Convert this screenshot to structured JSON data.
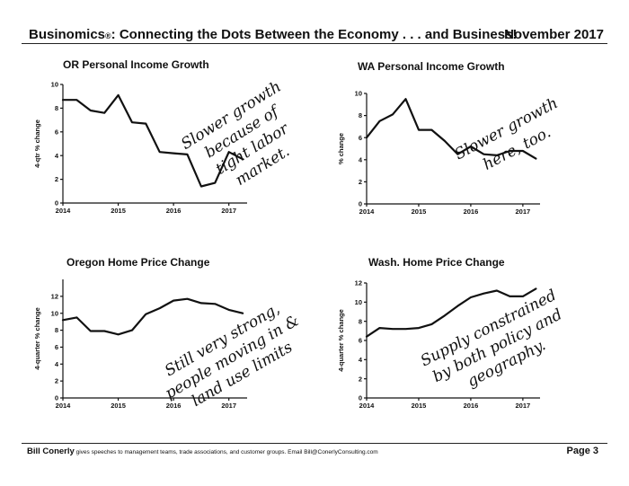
{
  "header": {
    "title": "Businomics",
    "reg_mark": "®",
    "title_rest": ": Connecting the Dots Between the Economy . . . and Business!",
    "date": "November 2017"
  },
  "footer": {
    "name": "Bill Conerly",
    "text": " gives speeches to management teams, trade associations, and customer groups.  Email Bill@ConerlyConsulting.com",
    "page": "Page 3"
  },
  "chart_data": [
    {
      "type": "line",
      "title": "OR Personal Income Growth",
      "ylabel": "4-qtr % change",
      "ylim": [
        0,
        10
      ],
      "yticks": [
        0,
        2,
        4,
        6,
        8,
        10
      ],
      "xlim": [
        2014,
        2017.33
      ],
      "xticks": [
        2014,
        2015,
        2016,
        2017
      ],
      "xtick_labels": [
        "2014",
        "2015",
        "2016",
        "2017"
      ],
      "series": [
        {
          "x": [
            2014,
            2014.25,
            2014.5,
            2014.75,
            2015,
            2015.25,
            2015.5,
            2015.75,
            2016,
            2016.25,
            2016.5,
            2016.75,
            2017,
            2017.25
          ],
          "values": [
            8.7,
            8.7,
            7.8,
            7.6,
            9.1,
            6.8,
            6.7,
            4.3,
            4.2,
            4.1,
            1.4,
            1.7,
            4.3,
            3.7
          ]
        }
      ],
      "annotation": [
        "Slower growth",
        "because of",
        "tight labor",
        "market."
      ]
    },
    {
      "type": "line",
      "title": "WA Personal Income Growth",
      "ylabel": "% change",
      "ylim": [
        0,
        10
      ],
      "yticks": [
        0,
        2,
        4,
        6,
        8,
        10
      ],
      "xlim": [
        2014,
        2017.33
      ],
      "xticks": [
        2014,
        2015,
        2016,
        2017
      ],
      "xtick_labels": [
        "2014",
        "2015",
        "2016",
        "2017"
      ],
      "series": [
        {
          "x": [
            2014,
            2014.25,
            2014.5,
            2014.75,
            2015,
            2015.25,
            2015.5,
            2015.75,
            2016,
            2016.25,
            2016.5,
            2016.75,
            2017,
            2017.25
          ],
          "values": [
            6.0,
            7.5,
            8.1,
            9.5,
            6.7,
            6.7,
            5.7,
            4.5,
            5.2,
            4.5,
            4.4,
            4.8,
            4.8,
            4.1
          ]
        }
      ],
      "annotation": [
        "Slower growth",
        "here, too."
      ]
    },
    {
      "type": "line",
      "title": "Oregon Home Price Change",
      "ylabel": "4-quarter % change",
      "ylim": [
        0,
        14
      ],
      "yticks": [
        0,
        2,
        4,
        6,
        8,
        10,
        12
      ],
      "xlim": [
        2014,
        2017.33
      ],
      "xticks": [
        2014,
        2015,
        2016,
        2017
      ],
      "xtick_labels": [
        "2014",
        "2015",
        "2016",
        "2017"
      ],
      "series": [
        {
          "x": [
            2014,
            2014.25,
            2014.5,
            2014.75,
            2015,
            2015.25,
            2015.5,
            2015.75,
            2016,
            2016.25,
            2016.5,
            2016.75,
            2017,
            2017.25
          ],
          "values": [
            9.2,
            9.5,
            7.9,
            7.9,
            7.5,
            8.0,
            9.9,
            10.6,
            11.5,
            11.7,
            11.2,
            11.1,
            10.4,
            10.0
          ]
        }
      ],
      "annotation": [
        "Still very strong,",
        "people moving in &",
        "land use limits"
      ]
    },
    {
      "type": "line",
      "title": "Wash. Home Price Change",
      "ylabel": "4-quarter % change",
      "ylim": [
        0,
        12
      ],
      "yticks": [
        0,
        2,
        4,
        6,
        8,
        10,
        12
      ],
      "xlim": [
        2014,
        2017.33
      ],
      "xticks": [
        2014,
        2015,
        2016,
        2017
      ],
      "xtick_labels": [
        "2014",
        "2015",
        "2016",
        "2017"
      ],
      "series": [
        {
          "x": [
            2014,
            2014.25,
            2014.5,
            2014.75,
            2015,
            2015.25,
            2015.5,
            2015.75,
            2016,
            2016.25,
            2016.5,
            2016.75,
            2017,
            2017.25
          ],
          "values": [
            6.4,
            7.3,
            7.2,
            7.2,
            7.3,
            7.7,
            8.6,
            9.6,
            10.5,
            10.9,
            11.2,
            10.6,
            10.6,
            11.4
          ]
        }
      ],
      "annotation": [
        "Supply constrained",
        "by both policy and",
        "geography."
      ]
    }
  ]
}
